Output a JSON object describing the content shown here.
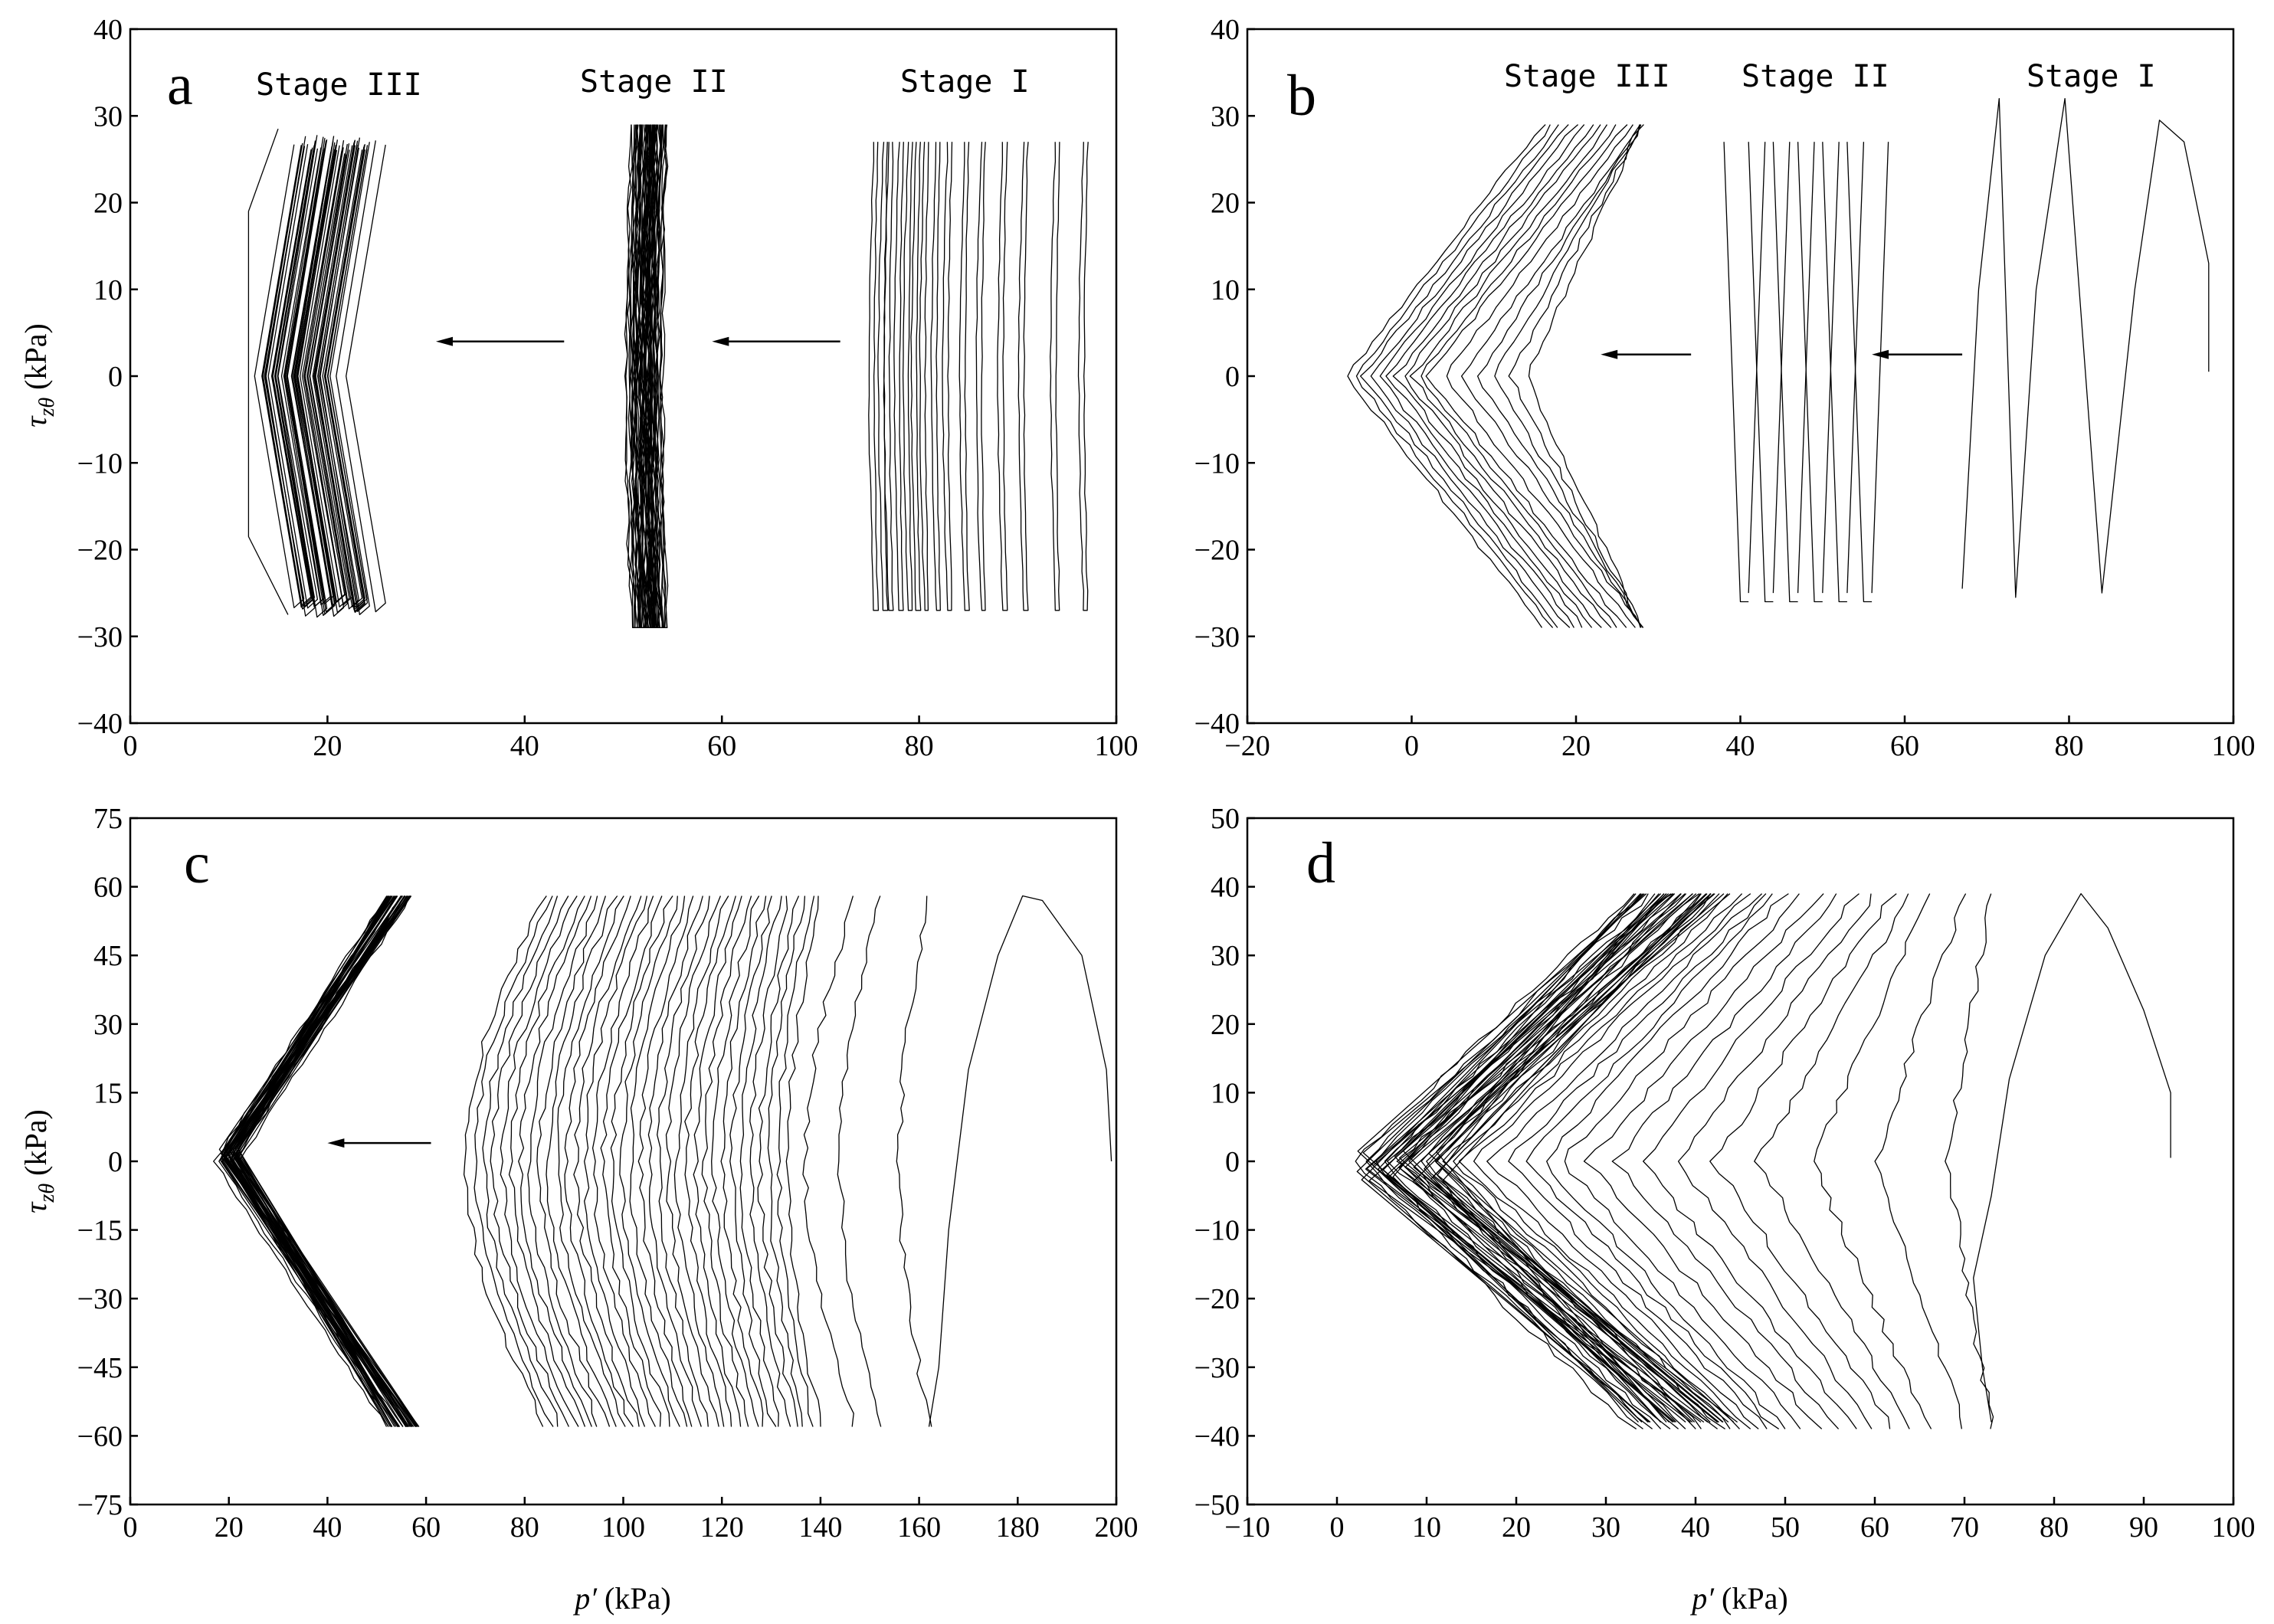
{
  "chart_data": [
    {
      "panel": "a",
      "type": "line",
      "xlabel": "",
      "ylabel": "τzθ (kPa)",
      "xlim": [
        0,
        100
      ],
      "ylim": [
        -40,
        40
      ],
      "xticks": [
        0,
        20,
        40,
        60,
        80,
        100
      ],
      "yticks": [
        -40,
        -30,
        -20,
        -10,
        0,
        10,
        20,
        30,
        40
      ],
      "stages": [
        {
          "name": "Stage III",
          "p_centers": [
            16,
            17,
            18,
            19,
            20,
            21,
            22,
            23
          ],
          "amplitude": 28,
          "bow": -3.5,
          "lines": 26
        },
        {
          "name": "Stage II",
          "p_centers": [
            51.5,
            52.5,
            53.5
          ],
          "amplitude": 29,
          "bow": -0.6,
          "lines": 30
        },
        {
          "name": "Stage I",
          "p_centers": [
            75.5,
            76.2,
            77,
            77.8,
            78.7,
            79.6,
            80.6,
            81.7,
            83,
            84.5,
            86.2,
            88.3,
            90.8,
            94,
            96.8
          ],
          "amplitude": 27,
          "bow": -0.5,
          "lines": 15
        }
      ],
      "arrows": [
        {
          "from": 44,
          "to": 31,
          "y": 4
        },
        {
          "from": 72,
          "to": 59,
          "y": 4
        }
      ]
    },
    {
      "panel": "b",
      "type": "line",
      "xlabel": "",
      "ylabel": "",
      "xlim": [
        -20,
        100
      ],
      "ylim": [
        -40,
        40
      ],
      "xticks": [
        -20,
        0,
        20,
        40,
        60,
        80,
        100
      ],
      "yticks": [
        -40,
        -30,
        -20,
        -10,
        0,
        10,
        20,
        30,
        40
      ],
      "stages": [
        {
          "name": "Stage III",
          "tip_p": [
            -8,
            -7,
            -6,
            -5,
            -4,
            -3,
            -2,
            -1,
            0,
            1,
            2,
            4,
            6,
            8,
            10,
            12,
            14
          ],
          "top_p": [
            16,
            17,
            18,
            19,
            20,
            21,
            22,
            23,
            24,
            25,
            26,
            27,
            28
          ],
          "amplitude": 29
        },
        {
          "name": "Stage II",
          "p_centers": [
            39,
            42,
            45,
            48,
            51,
            54
          ],
          "amplitude": 27
        },
        {
          "name": "Stage I",
          "p_centers": [
            70,
            75,
            82,
            91
          ],
          "amplitude": 31
        }
      ],
      "arrows": [
        {
          "from": 34,
          "to": 23,
          "y": 2.5
        },
        {
          "from": 67,
          "to": 56,
          "y": 2.5
        }
      ]
    },
    {
      "panel": "c",
      "type": "line",
      "xlabel": "p′ (kPa)",
      "ylabel": "τzθ (kPa)",
      "xlim": [
        0,
        200
      ],
      "ylim": [
        -75,
        75
      ],
      "xticks": [
        0,
        20,
        40,
        60,
        80,
        100,
        120,
        140,
        160,
        180,
        200
      ],
      "yticks": [
        -75,
        -60,
        -45,
        -30,
        -15,
        0,
        15,
        30,
        45,
        60,
        75
      ],
      "stages": [
        {
          "name": "",
          "tip_p": [
            17,
            18,
            19,
            20,
            21,
            22
          ],
          "top_p": [
            52,
            53,
            54,
            55,
            56,
            57
          ],
          "amplitude": 58
        },
        {
          "name": "",
          "p_centers": [
            70,
            72,
            74,
            76,
            78,
            80,
            82,
            84,
            86,
            88,
            90,
            92,
            94,
            96,
            98,
            100,
            103,
            106,
            109,
            112,
            116,
            120,
            125,
            131,
            138,
            147,
            162
          ],
          "amplitude": 58
        }
      ],
      "arrows": [
        {
          "from": 61,
          "to": 40,
          "y": 4
        }
      ]
    },
    {
      "panel": "d",
      "type": "line",
      "xlabel": "p′ (kPa)",
      "ylabel": "",
      "xlim": [
        -10,
        100
      ],
      "ylim": [
        -50,
        50
      ],
      "xticks": [
        -10,
        0,
        10,
        20,
        30,
        40,
        50,
        60,
        70,
        80,
        90,
        100
      ],
      "yticks": [
        -50,
        -40,
        -30,
        -20,
        -10,
        0,
        10,
        20,
        30,
        40,
        50
      ],
      "stages": [
        {
          "name": "",
          "tip_p": [
            2,
            3,
            4,
            5,
            6,
            7,
            8,
            9,
            10,
            11,
            12,
            13,
            14,
            15,
            17,
            19,
            21,
            23,
            25,
            28,
            31,
            34,
            38,
            42,
            47,
            53,
            60,
            68
          ],
          "top_p": [
            33,
            34,
            35,
            36,
            37,
            38,
            39,
            40,
            41,
            42,
            43,
            44,
            45,
            46,
            47,
            48,
            49,
            50,
            52,
            54,
            56,
            58,
            60,
            62,
            64,
            66,
            70,
            73
          ],
          "amplitude": 39
        }
      ],
      "first_loop": {
        "p": 83,
        "amplitude": 39,
        "start": 93
      }
    }
  ],
  "panels": {
    "a": {
      "letter": "a",
      "ylabel": "τzθ (kPa)",
      "stage_labels": [
        "Stage III",
        "Stage II",
        "Stage I"
      ]
    },
    "b": {
      "letter": "b",
      "stage_labels": [
        "Stage III",
        "Stage II",
        "Stage I"
      ]
    },
    "c": {
      "letter": "c",
      "ylabel": "τzθ (kPa)",
      "xlabel": "p′ (kPa)"
    },
    "d": {
      "letter": "d",
      "xlabel": "p′ (kPa)"
    }
  }
}
